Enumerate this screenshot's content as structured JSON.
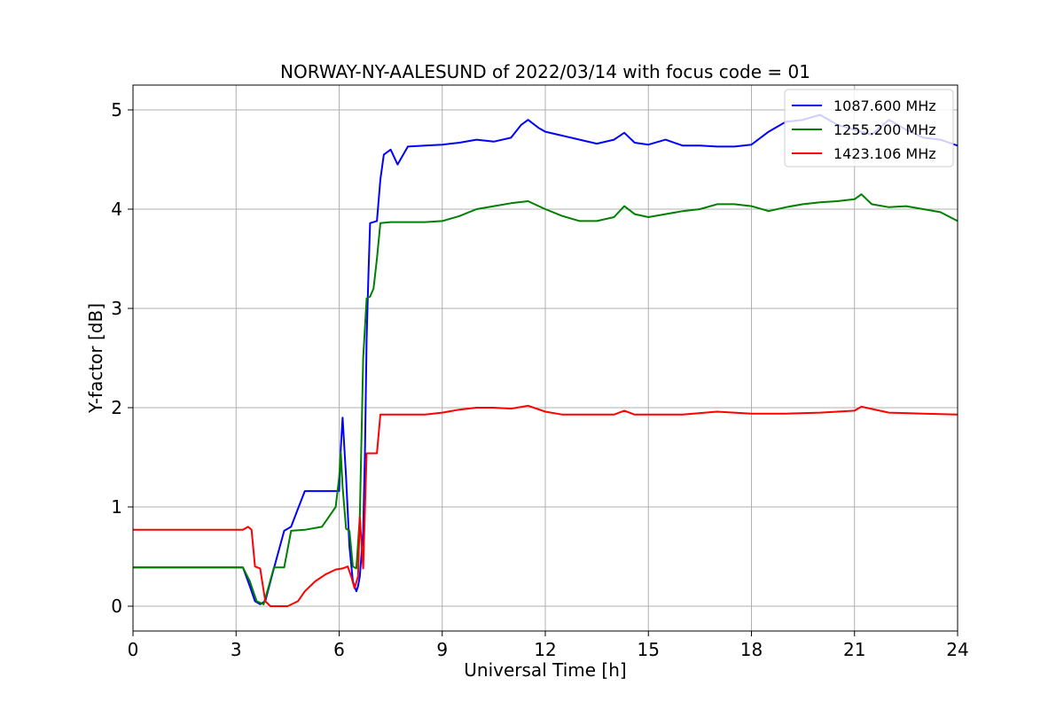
{
  "chart_data": {
    "type": "line",
    "title": "NORWAY-NY-AALESUND of 2022/03/14 with focus code = 01",
    "xlabel": "Universal Time [h]",
    "ylabel": "Y-factor [dB]",
    "xlim": [
      0,
      24
    ],
    "ylim": [
      -0.25,
      5.25
    ],
    "xticks": [
      0,
      3,
      6,
      9,
      12,
      15,
      18,
      21,
      24
    ],
    "yticks": [
      0,
      1,
      2,
      3,
      4,
      5
    ],
    "grid": true,
    "legend_position": "top-right",
    "series": [
      {
        "name": "1087.600 MHz",
        "color": "#0000ff",
        "x": [
          0,
          1.0,
          2.0,
          3.0,
          3.2,
          3.4,
          3.55,
          3.7,
          3.85,
          4.1,
          4.4,
          4.6,
          4.8,
          5.0,
          5.5,
          6.0,
          6.05,
          6.1,
          6.2,
          6.3,
          6.4,
          6.5,
          6.55,
          6.6,
          6.7,
          6.75,
          6.8,
          6.85,
          6.9,
          7.0,
          7.1,
          7.2,
          7.3,
          7.5,
          7.7,
          8.0,
          8.5,
          9.0,
          9.5,
          10.0,
          10.5,
          11.0,
          11.3,
          11.5,
          11.8,
          12.0,
          12.5,
          13.0,
          13.5,
          14.0,
          14.3,
          14.6,
          15.0,
          15.5,
          16.0,
          16.5,
          17.0,
          17.5,
          18.0,
          18.5,
          19.0,
          19.5,
          20.0,
          20.5,
          21.0,
          21.5,
          22.0,
          22.5,
          23.0,
          23.5,
          24.0
        ],
        "y": [
          0.39,
          0.39,
          0.39,
          0.39,
          0.39,
          0.2,
          0.05,
          0.02,
          0.05,
          0.38,
          0.76,
          0.8,
          0.98,
          1.16,
          1.16,
          1.16,
          1.6,
          1.9,
          1.3,
          0.6,
          0.25,
          0.15,
          0.2,
          0.3,
          0.75,
          1.55,
          2.7,
          3.3,
          3.86,
          3.87,
          3.88,
          4.3,
          4.55,
          4.6,
          4.45,
          4.63,
          4.64,
          4.65,
          4.67,
          4.7,
          4.68,
          4.72,
          4.85,
          4.9,
          4.82,
          4.78,
          4.74,
          4.7,
          4.66,
          4.7,
          4.77,
          4.67,
          4.65,
          4.7,
          4.64,
          4.64,
          4.63,
          4.63,
          4.65,
          4.78,
          4.88,
          4.9,
          4.95,
          4.85,
          4.8,
          4.75,
          4.9,
          4.8,
          4.72,
          4.7,
          4.64
        ]
      },
      {
        "name": "1255.200 MHz",
        "color": "#008000",
        "x": [
          0,
          1.0,
          2.0,
          3.0,
          3.2,
          3.4,
          3.6,
          3.8,
          3.95,
          4.1,
          4.4,
          4.6,
          5.0,
          5.5,
          5.7,
          5.9,
          6.0,
          6.05,
          6.1,
          6.2,
          6.3,
          6.4,
          6.5,
          6.6,
          6.7,
          6.8,
          6.9,
          7.0,
          7.1,
          7.2,
          7.5,
          8.0,
          8.5,
          9.0,
          9.5,
          10.0,
          10.5,
          11.0,
          11.5,
          12.0,
          12.5,
          13.0,
          13.5,
          14.0,
          14.3,
          14.6,
          15.0,
          15.5,
          16.0,
          16.5,
          17.0,
          17.5,
          18.0,
          18.5,
          19.0,
          19.5,
          20.0,
          20.5,
          21.0,
          21.2,
          21.5,
          22.0,
          22.5,
          23.0,
          23.5,
          24.0
        ],
        "y": [
          0.39,
          0.39,
          0.39,
          0.39,
          0.39,
          0.25,
          0.05,
          0.02,
          0.2,
          0.39,
          0.39,
          0.76,
          0.77,
          0.8,
          0.9,
          1.0,
          1.3,
          1.55,
          1.2,
          0.78,
          0.76,
          0.4,
          0.38,
          0.9,
          2.5,
          3.1,
          3.12,
          3.2,
          3.5,
          3.86,
          3.87,
          3.87,
          3.87,
          3.88,
          3.93,
          4.0,
          4.03,
          4.06,
          4.08,
          4.0,
          3.93,
          3.88,
          3.88,
          3.92,
          4.03,
          3.95,
          3.92,
          3.95,
          3.98,
          4.0,
          4.05,
          4.05,
          4.03,
          3.98,
          4.02,
          4.05,
          4.07,
          4.08,
          4.1,
          4.15,
          4.05,
          4.02,
          4.03,
          4.0,
          3.97,
          3.88
        ]
      },
      {
        "name": "1423.106 MHz",
        "color": "#ff0000",
        "x": [
          0,
          1.0,
          2.0,
          3.0,
          3.2,
          3.35,
          3.45,
          3.55,
          3.7,
          3.85,
          4.0,
          4.2,
          4.5,
          4.8,
          5.0,
          5.3,
          5.6,
          5.9,
          6.1,
          6.25,
          6.35,
          6.45,
          6.55,
          6.6,
          6.7,
          6.8,
          6.9,
          7.0,
          7.1,
          7.2,
          7.3,
          7.6,
          8.0,
          8.5,
          9.0,
          9.5,
          10.0,
          10.5,
          11.0,
          11.5,
          12.0,
          12.5,
          13.0,
          14.0,
          14.3,
          14.6,
          15.0,
          16.0,
          17.0,
          18.0,
          19.0,
          20.0,
          21.0,
          21.2,
          22.0,
          23.0,
          24.0
        ],
        "y": [
          0.77,
          0.77,
          0.77,
          0.77,
          0.77,
          0.8,
          0.77,
          0.4,
          0.38,
          0.05,
          0.0,
          0.0,
          0.0,
          0.05,
          0.15,
          0.25,
          0.32,
          0.37,
          0.38,
          0.4,
          0.3,
          0.18,
          0.3,
          0.9,
          0.38,
          1.54,
          1.54,
          1.54,
          1.54,
          1.93,
          1.93,
          1.93,
          1.93,
          1.93,
          1.95,
          1.98,
          2.0,
          2.0,
          1.99,
          2.02,
          1.96,
          1.93,
          1.93,
          1.93,
          1.97,
          1.93,
          1.93,
          1.93,
          1.96,
          1.94,
          1.94,
          1.95,
          1.97,
          2.01,
          1.95,
          1.94,
          1.93
        ]
      }
    ]
  }
}
